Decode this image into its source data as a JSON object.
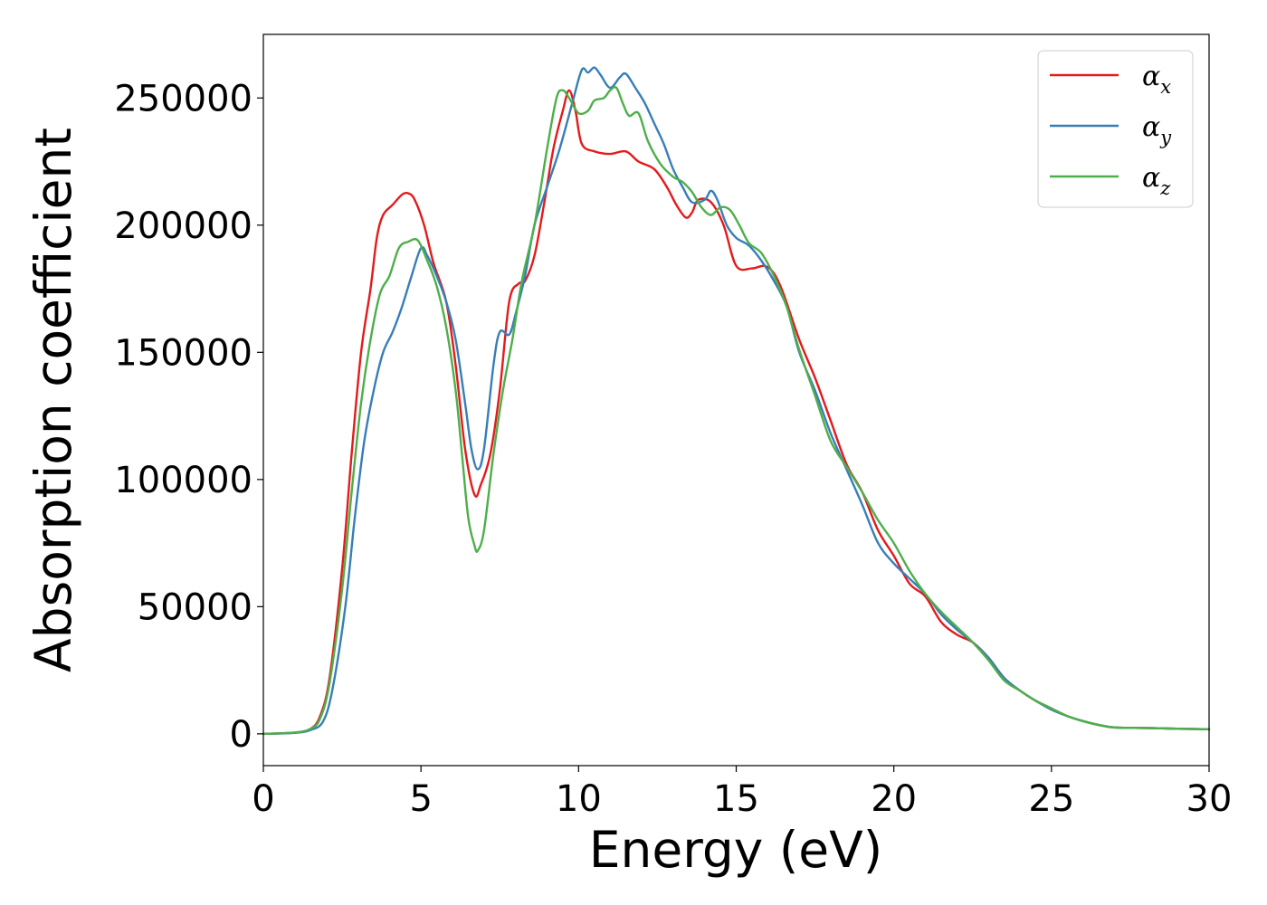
{
  "chart_data": {
    "type": "line",
    "title": "",
    "xlabel": "Energy (eV)",
    "ylabel": "Absorption coefficient",
    "xlim": [
      0,
      30
    ],
    "ylim": [
      -12500,
      275000
    ],
    "xticks": [
      0,
      5,
      10,
      15,
      20,
      25,
      30
    ],
    "yticks": [
      0,
      50000,
      100000,
      150000,
      200000,
      250000
    ],
    "grid": false,
    "legend_position": "top-right",
    "series": [
      {
        "name": "α_x",
        "label_base": "α",
        "label_sub": "x",
        "color": "#e41a1c",
        "points": [
          [
            0,
            0
          ],
          [
            1,
            500
          ],
          [
            1.5,
            2000
          ],
          [
            1.8,
            7000
          ],
          [
            2.1,
            22000
          ],
          [
            2.5,
            65000
          ],
          [
            2.8,
            110000
          ],
          [
            3.1,
            150000
          ],
          [
            3.4,
            175000
          ],
          [
            3.6,
            195000
          ],
          [
            3.8,
            204000
          ],
          [
            4.1,
            208000
          ],
          [
            4.4,
            212000
          ],
          [
            4.6,
            212500
          ],
          [
            4.8,
            210000
          ],
          [
            5.1,
            200000
          ],
          [
            5.4,
            185000
          ],
          [
            5.8,
            170000
          ],
          [
            6.1,
            145000
          ],
          [
            6.4,
            112000
          ],
          [
            6.7,
            94000
          ],
          [
            6.9,
            98000
          ],
          [
            7.2,
            110000
          ],
          [
            7.5,
            135000
          ],
          [
            7.8,
            170000
          ],
          [
            8.1,
            177000
          ],
          [
            8.3,
            178000
          ],
          [
            8.6,
            188000
          ],
          [
            8.9,
            208000
          ],
          [
            9.2,
            230000
          ],
          [
            9.5,
            245000
          ],
          [
            9.7,
            253000
          ],
          [
            9.9,
            245000
          ],
          [
            10.1,
            232000
          ],
          [
            10.5,
            229000
          ],
          [
            11.0,
            228000
          ],
          [
            11.5,
            229000
          ],
          [
            11.9,
            225000
          ],
          [
            12.4,
            222000
          ],
          [
            12.8,
            215000
          ],
          [
            13.1,
            208000
          ],
          [
            13.4,
            203000
          ],
          [
            13.6,
            205000
          ],
          [
            13.8,
            210000
          ],
          [
            14.2,
            209000
          ],
          [
            14.6,
            200000
          ],
          [
            15.0,
            184000
          ],
          [
            15.5,
            183000
          ],
          [
            15.9,
            184000
          ],
          [
            16.2,
            181000
          ],
          [
            16.5,
            173000
          ],
          [
            17.0,
            155000
          ],
          [
            17.5,
            140000
          ],
          [
            18.0,
            123000
          ],
          [
            18.5,
            106000
          ],
          [
            19.0,
            95000
          ],
          [
            19.5,
            80000
          ],
          [
            20.0,
            70000
          ],
          [
            20.5,
            59000
          ],
          [
            21.0,
            54000
          ],
          [
            21.5,
            44000
          ],
          [
            22.0,
            39000
          ],
          [
            22.5,
            36000
          ],
          [
            23.0,
            30000
          ],
          [
            23.5,
            22000
          ],
          [
            24.0,
            17000
          ],
          [
            24.5,
            13000
          ],
          [
            25.0,
            10000
          ],
          [
            25.5,
            7000
          ],
          [
            26.0,
            5000
          ],
          [
            26.5,
            3500
          ],
          [
            27.0,
            2500
          ],
          [
            28.0,
            2300
          ],
          [
            29.0,
            2000
          ],
          [
            30.0,
            1800
          ]
        ]
      },
      {
        "name": "α_y",
        "label_base": "α",
        "label_sub": "y",
        "color": "#377eb8",
        "points": [
          [
            0,
            0
          ],
          [
            1,
            400
          ],
          [
            1.5,
            1500
          ],
          [
            1.9,
            5000
          ],
          [
            2.2,
            18000
          ],
          [
            2.6,
            50000
          ],
          [
            2.9,
            85000
          ],
          [
            3.2,
            115000
          ],
          [
            3.5,
            135000
          ],
          [
            3.8,
            150000
          ],
          [
            4.1,
            158000
          ],
          [
            4.4,
            168000
          ],
          [
            4.7,
            180000
          ],
          [
            5.0,
            191000
          ],
          [
            5.2,
            188000
          ],
          [
            5.5,
            180000
          ],
          [
            5.8,
            170000
          ],
          [
            6.1,
            155000
          ],
          [
            6.4,
            130000
          ],
          [
            6.6,
            112000
          ],
          [
            6.8,
            104000
          ],
          [
            7.0,
            112000
          ],
          [
            7.3,
            145000
          ],
          [
            7.5,
            158000
          ],
          [
            7.8,
            157000
          ],
          [
            8.0,
            165000
          ],
          [
            8.3,
            180000
          ],
          [
            8.6,
            200000
          ],
          [
            9.0,
            215000
          ],
          [
            9.4,
            230000
          ],
          [
            9.8,
            248000
          ],
          [
            10.1,
            261000
          ],
          [
            10.3,
            260000
          ],
          [
            10.5,
            262000
          ],
          [
            10.7,
            259000
          ],
          [
            11.0,
            254000
          ],
          [
            11.3,
            258000
          ],
          [
            11.5,
            259500
          ],
          [
            11.8,
            254000
          ],
          [
            12.1,
            248000
          ],
          [
            12.4,
            240000
          ],
          [
            12.7,
            232000
          ],
          [
            13.0,
            222000
          ],
          [
            13.3,
            215000
          ],
          [
            13.6,
            209000
          ],
          [
            14.0,
            210000
          ],
          [
            14.2,
            213500
          ],
          [
            14.4,
            210000
          ],
          [
            14.7,
            200000
          ],
          [
            15.0,
            195000
          ],
          [
            15.4,
            192000
          ],
          [
            15.8,
            186000
          ],
          [
            16.2,
            178000
          ],
          [
            16.6,
            168000
          ],
          [
            17.0,
            150000
          ],
          [
            17.5,
            135000
          ],
          [
            18.0,
            118000
          ],
          [
            18.5,
            104000
          ],
          [
            19.0,
            90000
          ],
          [
            19.5,
            75000
          ],
          [
            20.0,
            67000
          ],
          [
            20.5,
            61000
          ],
          [
            21.0,
            55000
          ],
          [
            21.5,
            47000
          ],
          [
            22.0,
            41000
          ],
          [
            22.5,
            36000
          ],
          [
            23.0,
            30000
          ],
          [
            23.5,
            22000
          ],
          [
            24.0,
            17000
          ],
          [
            24.5,
            13000
          ],
          [
            25.0,
            9500
          ],
          [
            25.5,
            7000
          ],
          [
            26.0,
            5000
          ],
          [
            26.5,
            3500
          ],
          [
            27.0,
            2500
          ],
          [
            28.0,
            2300
          ],
          [
            29.0,
            2000
          ],
          [
            30.0,
            1800
          ]
        ]
      },
      {
        "name": "α_z",
        "label_base": "α",
        "label_sub": "z",
        "color": "#4daf4a",
        "points": [
          [
            0,
            0
          ],
          [
            1,
            500
          ],
          [
            1.5,
            2000
          ],
          [
            1.8,
            6000
          ],
          [
            2.1,
            20000
          ],
          [
            2.5,
            57000
          ],
          [
            2.8,
            95000
          ],
          [
            3.1,
            130000
          ],
          [
            3.4,
            155000
          ],
          [
            3.7,
            173000
          ],
          [
            4.0,
            180000
          ],
          [
            4.3,
            191000
          ],
          [
            4.6,
            193500
          ],
          [
            4.9,
            194000
          ],
          [
            5.2,
            186000
          ],
          [
            5.5,
            176000
          ],
          [
            5.8,
            160000
          ],
          [
            6.1,
            135000
          ],
          [
            6.3,
            110000
          ],
          [
            6.5,
            85000
          ],
          [
            6.7,
            74000
          ],
          [
            6.8,
            72000
          ],
          [
            7.0,
            80000
          ],
          [
            7.3,
            110000
          ],
          [
            7.6,
            135000
          ],
          [
            7.9,
            155000
          ],
          [
            8.2,
            178000
          ],
          [
            8.6,
            200000
          ],
          [
            9.0,
            230000
          ],
          [
            9.3,
            250000
          ],
          [
            9.5,
            253000
          ],
          [
            9.7,
            250000
          ],
          [
            10.0,
            244000
          ],
          [
            10.3,
            245000
          ],
          [
            10.5,
            249000
          ],
          [
            10.8,
            250000
          ],
          [
            11.0,
            253000
          ],
          [
            11.2,
            254000
          ],
          [
            11.4,
            248000
          ],
          [
            11.6,
            243000
          ],
          [
            11.9,
            244000
          ],
          [
            12.2,
            233000
          ],
          [
            12.6,
            224000
          ],
          [
            13.0,
            219000
          ],
          [
            13.3,
            217000
          ],
          [
            13.6,
            213000
          ],
          [
            13.9,
            207000
          ],
          [
            14.2,
            204000
          ],
          [
            14.5,
            207000
          ],
          [
            14.8,
            206000
          ],
          [
            15.1,
            200000
          ],
          [
            15.4,
            193000
          ],
          [
            15.8,
            189000
          ],
          [
            16.2,
            180000
          ],
          [
            16.6,
            168000
          ],
          [
            17.0,
            151000
          ],
          [
            17.5,
            133000
          ],
          [
            18.0,
            115000
          ],
          [
            18.5,
            105000
          ],
          [
            19.0,
            95000
          ],
          [
            19.5,
            84000
          ],
          [
            20.0,
            75000
          ],
          [
            20.5,
            64000
          ],
          [
            21.0,
            55000
          ],
          [
            21.5,
            48000
          ],
          [
            22.0,
            42000
          ],
          [
            22.5,
            36000
          ],
          [
            23.0,
            29000
          ],
          [
            23.5,
            21000
          ],
          [
            24.0,
            17000
          ],
          [
            24.5,
            13000
          ],
          [
            25.0,
            10000
          ],
          [
            25.5,
            7000
          ],
          [
            26.0,
            5000
          ],
          [
            26.5,
            3500
          ],
          [
            27.0,
            2500
          ],
          [
            28.0,
            2300
          ],
          [
            29.0,
            2000
          ],
          [
            30.0,
            1800
          ]
        ]
      }
    ]
  }
}
